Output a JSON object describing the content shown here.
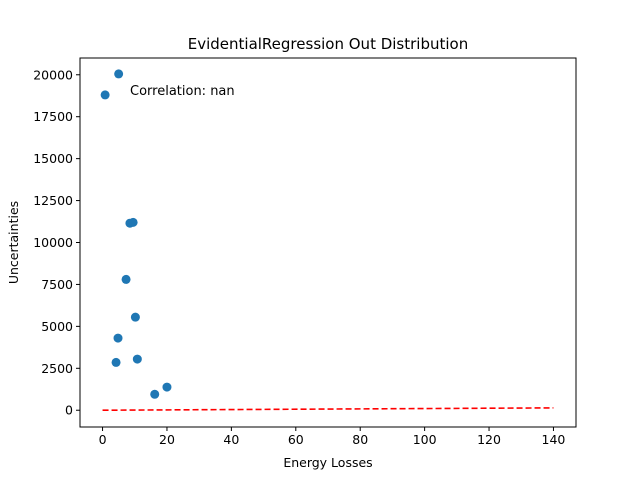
{
  "chart_data": {
    "type": "scatter",
    "title": "EvidentialRegression Out Distribution",
    "xlabel": "Energy Losses",
    "ylabel": "Uncertainties",
    "xlim": [
      -7,
      147
    ],
    "ylim": [
      -1000,
      21000
    ],
    "xticks": [
      0,
      20,
      40,
      60,
      80,
      100,
      120,
      140
    ],
    "yticks": [
      0,
      2500,
      5000,
      7500,
      10000,
      12500,
      15000,
      17500,
      20000
    ],
    "grid": false,
    "series": [
      {
        "type": "scatter",
        "color": "#1f77b4",
        "x": [
          5.0,
          0.8,
          8.5,
          9.5,
          7.3,
          10.2,
          4.8,
          10.8,
          4.2,
          20.0,
          16.2
        ],
        "y": [
          20050,
          18800,
          11150,
          11200,
          7800,
          5550,
          4300,
          3050,
          2850,
          1380,
          950
        ]
      },
      {
        "type": "line",
        "style": "dashed",
        "color": "#ff0000",
        "x": [
          0,
          140
        ],
        "y": [
          0,
          140
        ]
      }
    ],
    "annotation": "Correlation: nan"
  }
}
